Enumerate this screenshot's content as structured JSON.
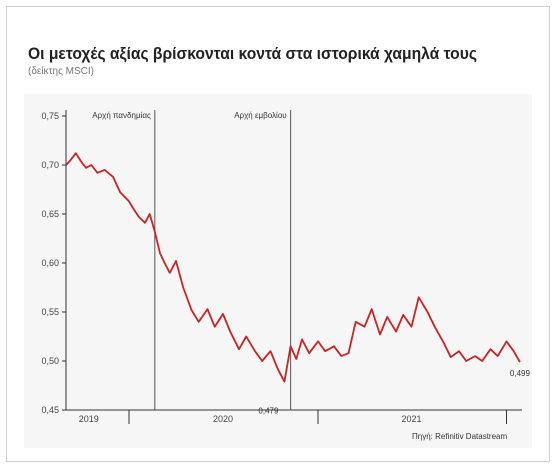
{
  "header": {
    "title": "Οι μετοχές αξίας βρίσκονται κοντά στα ιστορικά χαμηλά τους",
    "subtitle": "(δείκτης MSCI)"
  },
  "footer": {
    "source": "Πηγή: Refinitiv Datastream"
  },
  "colors": {
    "line": "#cc2222",
    "axis": "#333333",
    "panel": "#f6f6f6"
  },
  "chart_data": {
    "type": "line",
    "title": "Οι μετοχές αξίας βρίσκονται κοντά στα ιστορικά χαμηλά τους",
    "subtitle": "(δείκτης MSCI)",
    "xlabel": "",
    "ylabel": "",
    "ylim": [
      0.45,
      0.75
    ],
    "y_ticks": [
      "0,45",
      "0,50",
      "0,55",
      "0,60",
      "0,65",
      "0,70",
      "0,75"
    ],
    "x_ticks": [
      "2019",
      "2020",
      "2021"
    ],
    "xlim": [
      "2019-09-01",
      "2022-01-31"
    ],
    "grid": false,
    "annotations": [
      {
        "label": "Αρχή πανδημίας",
        "date": "2020-02-20"
      },
      {
        "label": "Αρχή εμβολίου",
        "date": "2020-11-09"
      }
    ],
    "value_labels": [
      {
        "label": "0,479",
        "date": "2020-10-28",
        "value": 0.479
      },
      {
        "label": "0,499",
        "date": "2022-01-27",
        "value": 0.499
      }
    ],
    "series": [
      {
        "x": [
          "2019-09-01",
          "2019-09-10",
          "2019-09-20",
          "2019-10-01",
          "2019-10-10",
          "2019-10-20",
          "2019-11-01",
          "2019-11-15",
          "2019-12-01",
          "2019-12-15",
          "2020-01-01",
          "2020-01-10",
          "2020-01-20",
          "2020-02-01",
          "2020-02-10",
          "2020-02-20",
          "2020-03-01",
          "2020-03-10",
          "2020-03-20",
          "2020-04-01",
          "2020-04-15",
          "2020-05-01",
          "2020-05-15",
          "2020-06-01",
          "2020-06-15",
          "2020-07-01",
          "2020-07-15",
          "2020-08-01",
          "2020-08-15",
          "2020-09-01",
          "2020-09-15",
          "2020-10-01",
          "2020-10-15",
          "2020-10-28",
          "2020-11-09",
          "2020-11-20",
          "2020-12-01",
          "2020-12-15",
          "2021-01-01",
          "2021-01-15",
          "2021-02-01",
          "2021-02-15",
          "2021-03-01",
          "2021-03-15",
          "2021-04-01",
          "2021-04-15",
          "2021-05-01",
          "2021-05-15",
          "2021-06-01",
          "2021-06-15",
          "2021-07-01",
          "2021-07-15",
          "2021-08-01",
          "2021-08-15",
          "2021-09-01",
          "2021-09-15",
          "2021-10-01",
          "2021-10-15",
          "2021-11-01",
          "2021-11-15",
          "2021-12-01",
          "2021-12-15",
          "2022-01-01",
          "2022-01-15",
          "2022-01-27"
        ],
        "values": [
          0.7,
          0.705,
          0.712,
          0.703,
          0.697,
          0.7,
          0.692,
          0.695,
          0.688,
          0.672,
          0.663,
          0.655,
          0.647,
          0.641,
          0.65,
          0.632,
          0.61,
          0.6,
          0.59,
          0.602,
          0.575,
          0.552,
          0.54,
          0.553,
          0.535,
          0.548,
          0.53,
          0.512,
          0.525,
          0.51,
          0.5,
          0.51,
          0.492,
          0.479,
          0.515,
          0.502,
          0.522,
          0.508,
          0.52,
          0.51,
          0.515,
          0.505,
          0.508,
          0.54,
          0.535,
          0.553,
          0.527,
          0.545,
          0.53,
          0.547,
          0.535,
          0.565,
          0.55,
          0.535,
          0.519,
          0.504,
          0.51,
          0.5,
          0.505,
          0.5,
          0.512,
          0.505,
          0.52,
          0.51,
          0.499
        ]
      }
    ]
  }
}
